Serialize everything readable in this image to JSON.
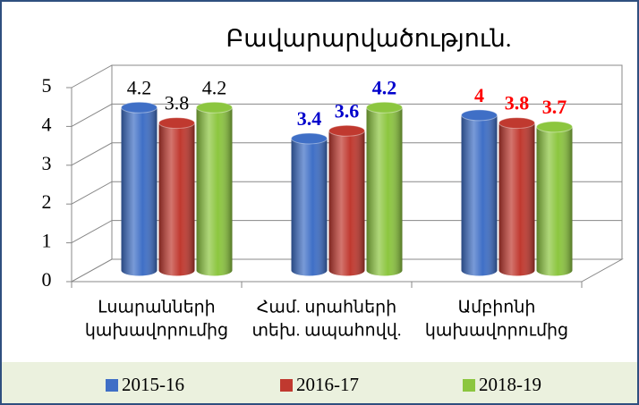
{
  "chart_data": {
    "type": "bar3d",
    "title": "Բավարարվածություն.",
    "categories": [
      [
        "Լսարանների",
        "կախավորումից"
      ],
      [
        "Համ. սրահների",
        "տեխ. ապահովվ."
      ],
      [
        "Ամբիոնի",
        "կախավորումից"
      ]
    ],
    "series": [
      {
        "name": "2015-16",
        "color": "#3f6fc6",
        "values": [
          4.2,
          3.4,
          4
        ]
      },
      {
        "name": "2016-17",
        "color": "#c0392f",
        "values": [
          3.8,
          3.6,
          3.8
        ]
      },
      {
        "name": "2018-19",
        "color": "#8cc63f",
        "values": [
          4.2,
          4.2,
          3.7
        ]
      }
    ],
    "label_colors": [
      "#000000",
      "#0000cc",
      "#ff0000"
    ],
    "ylim": [
      0,
      5
    ],
    "yticks": [
      0,
      1,
      2,
      3,
      4,
      5
    ],
    "grid": true,
    "legend": "bottom"
  }
}
